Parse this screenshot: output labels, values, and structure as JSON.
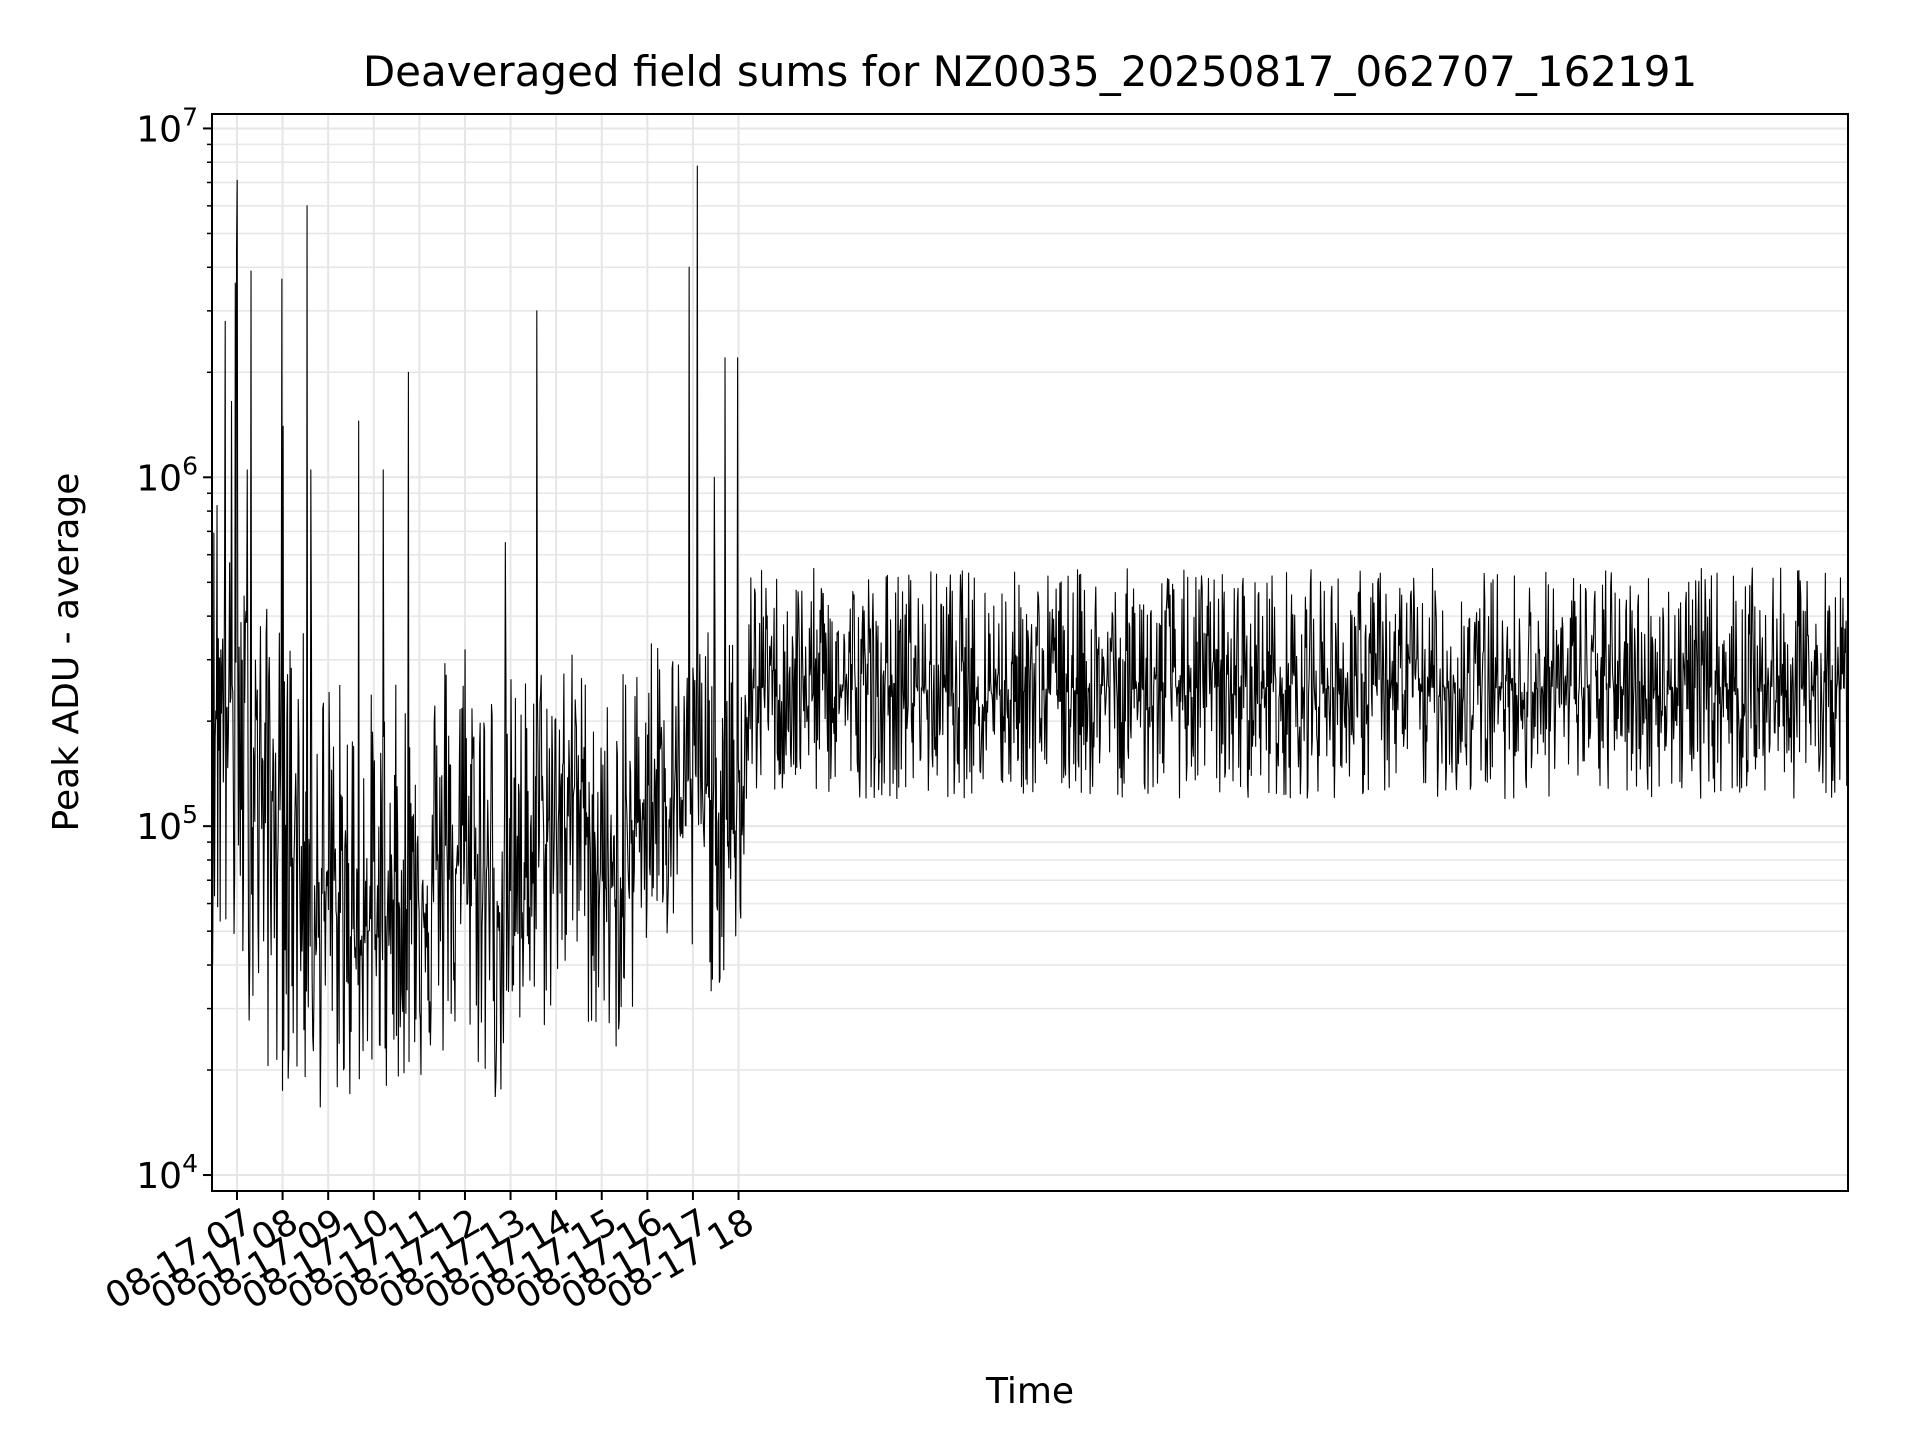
{
  "chart_data": {
    "type": "line",
    "title": "Deaveraged field sums for NZ0035_20250817_062707_162191",
    "xlabel": "Time",
    "ylabel": "Peak ADU - average",
    "yscale": "log",
    "ylim": [
      9000,
      11000000
    ],
    "xlim": [
      "2025-08-17 06:27:07",
      "2025-08-18 18:20:00"
    ],
    "grid": true,
    "legend": "none",
    "line_color": "#000000",
    "grid_color": "#e6e6e6",
    "x_ticks": [
      "08-17 07",
      "08-17 08",
      "08-17 09",
      "08-17 10",
      "08-17 11",
      "08-17 12",
      "08-17 13",
      "08-17 14",
      "08-17 15",
      "08-17 16",
      "08-17 17",
      "08-17 18"
    ],
    "y_ticks": [
      {
        "value": 10000,
        "base": "10",
        "exp": "4"
      },
      {
        "value": 100000,
        "base": "10",
        "exp": "5"
      },
      {
        "value": 1000000,
        "base": "10",
        "exp": "6"
      },
      {
        "value": 10000000,
        "base": "10",
        "exp": "7"
      }
    ],
    "series": [
      {
        "x": [
          "2025-08-17 06:27",
          "2025-08-17 06:45",
          "2025-08-17 07:00",
          "2025-08-17 07:15",
          "2025-08-17 07:30",
          "2025-08-17 07:45",
          "2025-08-17 08:00",
          "2025-08-17 08:15",
          "2025-08-17 08:30",
          "2025-08-17 08:45",
          "2025-08-17 09:00",
          "2025-08-17 09:15",
          "2025-08-17 09:30",
          "2025-08-17 09:45",
          "2025-08-17 10:00",
          "2025-08-17 10:15",
          "2025-08-17 10:30",
          "2025-08-17 10:45",
          "2025-08-17 11:00",
          "2025-08-17 11:15",
          "2025-08-17 11:30",
          "2025-08-17 11:45",
          "2025-08-17 12:00",
          "2025-08-17 12:15",
          "2025-08-17 12:30",
          "2025-08-17 12:45",
          "2025-08-17 13:00",
          "2025-08-17 13:15",
          "2025-08-17 13:30",
          "2025-08-17 13:45",
          "2025-08-17 14:00",
          "2025-08-17 14:15",
          "2025-08-17 14:30",
          "2025-08-17 14:45",
          "2025-08-17 15:00",
          "2025-08-17 15:15",
          "2025-08-17 15:30",
          "2025-08-17 15:45",
          "2025-08-17 16:00",
          "2025-08-17 16:15",
          "2025-08-17 16:30",
          "2025-08-17 16:45",
          "2025-08-17 17:00",
          "2025-08-17 17:15",
          "2025-08-17 17:30",
          "2025-08-17 17:45",
          "2025-08-17 18:00",
          "2025-08-17 18:15"
        ],
        "y": [
          250000,
          230000,
          220000,
          200000,
          160000,
          120000,
          110000,
          90000,
          80000,
          70000,
          60000,
          55000,
          50000,
          48000,
          52000,
          55000,
          60000,
          62000,
          65000,
          68000,
          70000,
          75000,
          80000,
          78000,
          70000,
          60000,
          65000,
          75000,
          85000,
          90000,
          100000,
          120000,
          130000,
          100000,
          70000,
          60000,
          70000,
          100000,
          130000,
          150000,
          140000,
          120000,
          140000,
          130000,
          110000,
          90000,
          100000,
          250000
        ],
        "low": [
          40000,
          35000,
          30000,
          28000,
          22000,
          18000,
          17000,
          16000,
          16000,
          15000,
          15000,
          16000,
          16000,
          17000,
          18000,
          18000,
          18000,
          18000,
          18000,
          19000,
          20000,
          22000,
          24000,
          20000,
          16000,
          15000,
          18000,
          22000,
          25000,
          25000,
          30000,
          35000,
          30000,
          25000,
          22000,
          22000,
          25000,
          30000,
          40000,
          45000,
          40000,
          35000,
          35000,
          33000,
          33000,
          35000,
          40000,
          120000
        ],
        "high": [
          900000,
          700000,
          500000,
          500000,
          450000,
          420000,
          400000,
          380000,
          360000,
          340000,
          300000,
          280000,
          260000,
          260000,
          250000,
          250000,
          260000,
          270000,
          280000,
          300000,
          350000,
          400000,
          420000,
          380000,
          300000,
          280000,
          280000,
          280000,
          300000,
          320000,
          330000,
          350000,
          300000,
          280000,
          250000,
          240000,
          280000,
          320000,
          380000,
          400000,
          350000,
          320000,
          380000,
          380000,
          380000,
          350000,
          380000,
          550000
        ],
        "spikes": [
          {
            "x": "2025-08-17 06:33",
            "y": 830000
          },
          {
            "x": "2025-08-17 06:44",
            "y": 2800000
          },
          {
            "x": "2025-08-17 06:52",
            "y": 1650000
          },
          {
            "x": "2025-08-17 06:57",
            "y": 3600000
          },
          {
            "x": "2025-08-17 06:59",
            "y": 4500000
          },
          {
            "x": "2025-08-17 07:00",
            "y": 7100000
          },
          {
            "x": "2025-08-17 07:13",
            "y": 1050000
          },
          {
            "x": "2025-08-17 07:18",
            "y": 3900000
          },
          {
            "x": "2025-08-17 07:59",
            "y": 3700000
          },
          {
            "x": "2025-08-17 08:00",
            "y": 1400000
          },
          {
            "x": "2025-08-17 08:32",
            "y": 6000000
          },
          {
            "x": "2025-08-17 08:37",
            "y": 1050000
          },
          {
            "x": "2025-08-17 09:40",
            "y": 1450000
          },
          {
            "x": "2025-08-17 10:12",
            "y": 1050000
          },
          {
            "x": "2025-08-17 10:45",
            "y": 2000000
          },
          {
            "x": "2025-08-17 12:53",
            "y": 650000
          },
          {
            "x": "2025-08-17 13:34",
            "y": 3000000
          },
          {
            "x": "2025-08-17 16:55",
            "y": 4000000
          },
          {
            "x": "2025-08-17 17:05",
            "y": 7800000
          },
          {
            "x": "2025-08-17 17:28",
            "y": 1000000
          },
          {
            "x": "2025-08-17 17:42",
            "y": 2200000
          },
          {
            "x": "2025-08-17 17:58",
            "y": 2200000
          }
        ]
      }
    ]
  }
}
